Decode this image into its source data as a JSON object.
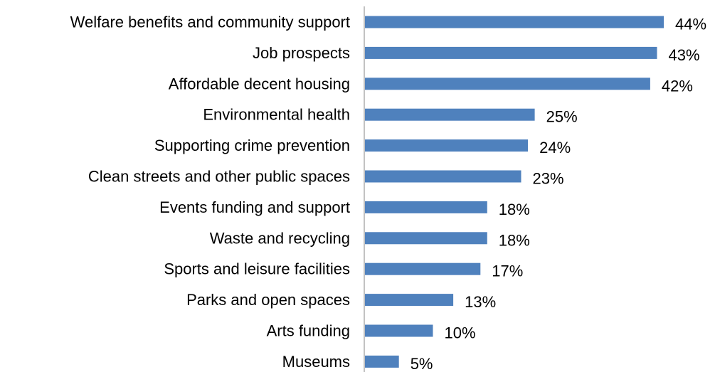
{
  "chart_data": {
    "type": "bar",
    "orientation": "horizontal",
    "categories": [
      "Welfare benefits and community support",
      "Job prospects",
      "Affordable decent housing",
      "Environmental health",
      "Supporting crime prevention",
      "Clean streets and other public spaces",
      "Events funding and support",
      "Waste and recycling",
      "Sports and leisure facilities",
      "Parks and open spaces",
      "Arts funding",
      "Museums"
    ],
    "values": [
      44,
      43,
      42,
      25,
      24,
      23,
      18,
      18,
      17,
      13,
      10,
      5
    ],
    "value_labels": [
      "44%",
      "43%",
      "42%",
      "25%",
      "24%",
      "23%",
      "18%",
      "18%",
      "17%",
      "13%",
      "10%",
      "5%"
    ],
    "unit": "%",
    "title": "",
    "xlabel": "",
    "ylabel": "",
    "xlim": [
      0,
      44
    ],
    "grid": false,
    "legend": "none",
    "colors": {
      "bar": "#4F81BD",
      "axis": "#868686",
      "text": "#000000"
    }
  }
}
